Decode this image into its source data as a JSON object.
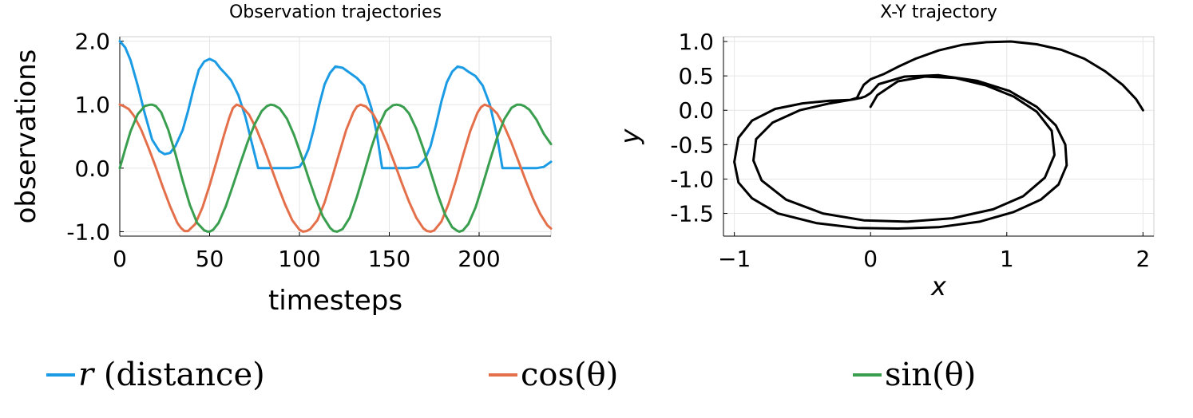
{
  "colors": {
    "series1": "#1a9be4",
    "series2": "#e4704b",
    "series3": "#3a9e4f",
    "trajectory": "#000000"
  },
  "chart_data": [
    {
      "type": "line",
      "title": "Observation trajectories",
      "xlabel": "timesteps",
      "ylabel": "observations",
      "xlim": [
        0,
        240
      ],
      "ylim": [
        -1.07,
        2.07
      ],
      "xticks": [
        0,
        50,
        100,
        150,
        200
      ],
      "xtick_labels": [
        "0",
        "50",
        "100",
        "150",
        "200"
      ],
      "yticks": [
        -1.0,
        0.0,
        1.0,
        2.0
      ],
      "ytick_labels": [
        "-1.0",
        "0.0",
        "1.0",
        "2.0"
      ],
      "grid": true,
      "legend": "bottom, horizontal",
      "series": [
        {
          "name": "r (distance)",
          "x": [
            0,
            3,
            6,
            10,
            14,
            18,
            22,
            25,
            28,
            31,
            35,
            38,
            41,
            44,
            47,
            50,
            53,
            56,
            59,
            62,
            66,
            70,
            73,
            77,
            80,
            85,
            90,
            95,
            100,
            102,
            105,
            108,
            111,
            114,
            117,
            120,
            124,
            128,
            132,
            136,
            140,
            143,
            146,
            150,
            155,
            160,
            166,
            170,
            173,
            176,
            179,
            182,
            185,
            188,
            191,
            194,
            198,
            202,
            206,
            210,
            213,
            216,
            220,
            226,
            232,
            236,
            240
          ],
          "y": [
            2.0,
            1.9,
            1.7,
            1.3,
            0.85,
            0.45,
            0.27,
            0.22,
            0.24,
            0.35,
            0.6,
            0.9,
            1.25,
            1.55,
            1.68,
            1.72,
            1.68,
            1.57,
            1.48,
            1.38,
            1.15,
            0.8,
            0.45,
            0.0,
            0.0,
            0.0,
            0.0,
            0.0,
            0.02,
            0.1,
            0.3,
            0.62,
            1.0,
            1.32,
            1.5,
            1.6,
            1.58,
            1.5,
            1.42,
            1.3,
            0.95,
            0.55,
            0.0,
            0.0,
            0.0,
            0.0,
            0.02,
            0.15,
            0.35,
            0.68,
            1.05,
            1.35,
            1.52,
            1.6,
            1.58,
            1.52,
            1.45,
            1.3,
            1.0,
            0.5,
            0.0,
            0.0,
            0.0,
            0.0,
            0.0,
            0.02,
            0.1
          ]
        },
        {
          "name": "cos(θ)",
          "x": [
            0,
            2,
            5,
            8,
            12,
            16,
            20,
            24,
            28,
            32,
            34,
            36,
            38,
            42,
            46,
            50,
            54,
            58,
            61,
            63,
            65,
            68,
            72,
            76,
            80,
            84,
            88,
            92,
            96,
            100,
            102,
            104,
            106,
            110,
            114,
            118,
            122,
            126,
            130,
            132,
            134,
            137,
            141,
            145,
            149,
            153,
            157,
            161,
            165,
            169,
            171,
            173,
            175,
            179,
            183,
            187,
            191,
            195,
            199,
            201,
            203,
            206,
            210,
            214,
            218,
            222,
            226,
            230,
            234,
            238,
            240
          ],
          "y": [
            1.0,
            0.98,
            0.93,
            0.82,
            0.6,
            0.32,
            0.02,
            -0.3,
            -0.6,
            -0.86,
            -0.94,
            -0.99,
            -0.99,
            -0.88,
            -0.62,
            -0.27,
            0.12,
            0.52,
            0.8,
            0.95,
            1.0,
            0.97,
            0.84,
            0.62,
            0.34,
            0.03,
            -0.28,
            -0.57,
            -0.82,
            -0.97,
            -1.0,
            -0.99,
            -0.96,
            -0.82,
            -0.54,
            -0.17,
            0.22,
            0.6,
            0.88,
            0.97,
            1.0,
            0.97,
            0.85,
            0.64,
            0.37,
            0.07,
            -0.24,
            -0.53,
            -0.78,
            -0.95,
            -0.99,
            -1.0,
            -0.98,
            -0.84,
            -0.56,
            -0.2,
            0.2,
            0.58,
            0.87,
            0.96,
            1.0,
            0.97,
            0.86,
            0.66,
            0.4,
            0.1,
            -0.2,
            -0.48,
            -0.72,
            -0.9,
            -0.95
          ]
        },
        {
          "name": "sin(θ)",
          "x": [
            0,
            3,
            6,
            10,
            14,
            17,
            18,
            20,
            23,
            27,
            31,
            35,
            39,
            43,
            47,
            49,
            50,
            52,
            55,
            59,
            63,
            67,
            71,
            75,
            79,
            82,
            84,
            86,
            89,
            93,
            97,
            101,
            105,
            109,
            113,
            117,
            119,
            121,
            124,
            128,
            132,
            136,
            140,
            144,
            148,
            152,
            154,
            156,
            158,
            161,
            165,
            169,
            173,
            177,
            181,
            185,
            188,
            189,
            191,
            194,
            198,
            202,
            206,
            210,
            214,
            218,
            221,
            223,
            225,
            228,
            232,
            236,
            240
          ],
          "y": [
            0.0,
            0.3,
            0.58,
            0.85,
            0.98,
            1.0,
            1.0,
            0.98,
            0.88,
            0.6,
            0.22,
            -0.2,
            -0.58,
            -0.86,
            -0.98,
            -1.0,
            -1.0,
            -0.97,
            -0.86,
            -0.6,
            -0.27,
            0.07,
            0.4,
            0.69,
            0.9,
            0.98,
            1.0,
            0.99,
            0.94,
            0.78,
            0.52,
            0.2,
            -0.15,
            -0.48,
            -0.76,
            -0.94,
            -0.99,
            -1.0,
            -0.96,
            -0.78,
            -0.45,
            -0.07,
            0.32,
            0.66,
            0.9,
            0.99,
            1.0,
            0.99,
            0.96,
            0.86,
            0.62,
            0.3,
            -0.06,
            -0.42,
            -0.73,
            -0.93,
            -0.99,
            -1.0,
            -0.98,
            -0.88,
            -0.62,
            -0.26,
            0.12,
            0.48,
            0.77,
            0.95,
            1.0,
            1.0,
            0.98,
            0.92,
            0.76,
            0.54,
            0.38
          ]
        }
      ]
    },
    {
      "type": "line",
      "title": "X-Y trajectory",
      "xlabel": "x",
      "ylabel": "y",
      "xlim": [
        -1.08,
        2.08
      ],
      "ylim": [
        -1.83,
        1.07
      ],
      "xticks": [
        -1,
        0,
        1,
        2
      ],
      "xtick_labels": [
        "−1",
        "0",
        "1",
        "2"
      ],
      "yticks": [
        -1.5,
        -1.0,
        -0.5,
        0.0,
        0.5,
        1.0
      ],
      "ytick_labels": [
        "-1.5",
        "-1.0",
        "-0.5",
        "0.0",
        "0.5",
        "1.0"
      ],
      "grid": true,
      "series": [
        {
          "x": [
            2.0,
            1.95,
            1.85,
            1.72,
            1.57,
            1.4,
            1.22,
            1.03,
            0.85,
            0.67,
            0.5,
            0.33,
            0.2,
            0.1,
            0.0,
            -0.05,
            -0.08,
            -0.1,
            -0.15,
            -0.3,
            -0.5,
            -0.7,
            -0.87,
            -0.97,
            -1.0,
            -0.97,
            -0.87,
            -0.68,
            -0.4,
            -0.1,
            0.2,
            0.5,
            0.8,
            1.05,
            1.25,
            1.38,
            1.44,
            1.43,
            1.36,
            1.22,
            1.02,
            0.78,
            0.5,
            0.25,
            0.06,
            0.0,
            -0.04,
            -0.07,
            -0.12,
            -0.3,
            -0.52,
            -0.72,
            -0.84,
            -0.86,
            -0.8,
            -0.62,
            -0.35,
            -0.05,
            0.27,
            0.6,
            0.9,
            1.12,
            1.28,
            1.35,
            1.33,
            1.22,
            1.05,
            0.85,
            0.62,
            0.4,
            0.2,
            0.05,
            0.0
          ],
          "y": [
            0.0,
            0.16,
            0.37,
            0.57,
            0.75,
            0.88,
            0.96,
            1.0,
            0.99,
            0.95,
            0.87,
            0.75,
            0.63,
            0.53,
            0.45,
            0.37,
            0.26,
            0.18,
            0.15,
            0.14,
            0.1,
            0.02,
            -0.15,
            -0.4,
            -0.75,
            -1.05,
            -1.28,
            -1.5,
            -1.64,
            -1.71,
            -1.72,
            -1.7,
            -1.62,
            -1.48,
            -1.3,
            -1.08,
            -0.8,
            -0.5,
            -0.22,
            0.05,
            0.28,
            0.43,
            0.51,
            0.49,
            0.38,
            0.25,
            0.2,
            0.18,
            0.16,
            0.1,
            0.0,
            -0.18,
            -0.42,
            -0.73,
            -1.02,
            -1.3,
            -1.5,
            -1.6,
            -1.62,
            -1.57,
            -1.44,
            -1.25,
            -0.98,
            -0.65,
            -0.3,
            -0.02,
            0.2,
            0.36,
            0.47,
            0.49,
            0.42,
            0.22,
            0.05
          ]
        }
      ]
    }
  ],
  "legend": [
    {
      "var": "r",
      "text": " (distance)"
    },
    {
      "text": "cos(θ)"
    },
    {
      "text": "sin(θ)"
    }
  ]
}
